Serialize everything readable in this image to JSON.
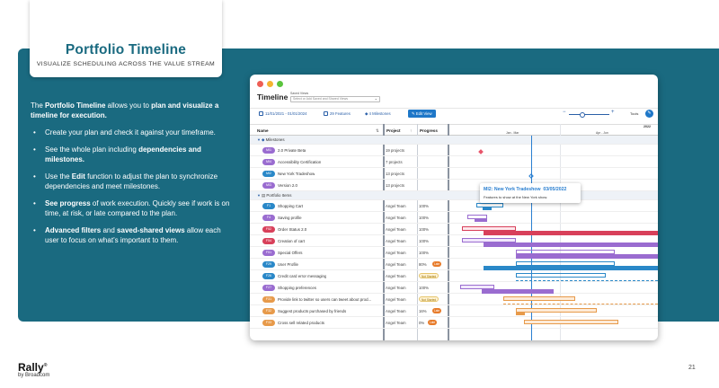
{
  "slide": {
    "title": "Portfolio Timeline",
    "subtitle": "VISUALIZE SCHEDULING ACROSS THE VALUE STREAM",
    "intro": {
      "p1": "The ",
      "b1": "Portfolio Timeline",
      "p2": " allows you to ",
      "b2": "plan and visualize a timeline for execution."
    },
    "bullets": [
      {
        "a": "Create your plan and check it against your timeframe."
      },
      {
        "a": "See the whole plan including ",
        "b": "dependencies and milestones."
      },
      {
        "a": "Use the ",
        "b": "Edit",
        "c": " function to adjust the plan to synchronize dependencies and meet milestones."
      },
      {
        "b": "See progress",
        "c": " of work execution. Quickly see if work is on time, at risk, or late compared to the plan."
      },
      {
        "b": "Advanced filters",
        "c": " and ",
        "d": "saved-shared views",
        "e": " allow each user to focus on what’s important to them."
      }
    ],
    "logo": {
      "name": "Rally",
      "mark": "®",
      "by": "by Broadcom"
    },
    "page_number": "21"
  },
  "app": {
    "title": "Timeline",
    "saved_views_label": "Saved Views",
    "saved_views_placeholder": "Select or Add Saved and Shared Views",
    "toolbar": {
      "date_range": "11/01/2021 - 01/01/2024",
      "features": "29 Features",
      "milestones": "4 Milestones",
      "edit": "Edit View",
      "tools": "Tools"
    },
    "columns": {
      "name": "Name",
      "project": "Project",
      "progress": "Progress"
    },
    "timeline_header": {
      "year": "2022",
      "months": [
        "Jan - Mar",
        "Apr - Jun"
      ]
    },
    "sections": {
      "milestones": "Milestones",
      "portfolio": "Portfolio Items"
    },
    "milestones": [
      {
        "id": "MI1",
        "name": "2.0 Private Beta",
        "project": "19 projects"
      },
      {
        "id": "MI4",
        "name": "Accessibility Certification",
        "project": "7 projects"
      },
      {
        "id": "MI2",
        "name": "New York Tradeshow",
        "project": "13 projects"
      },
      {
        "id": "MI3",
        "name": "Version 2.0",
        "project": "13 projects"
      }
    ],
    "items": [
      {
        "id": "F1",
        "name": "Shopping Cart",
        "project": "Angel Team",
        "progress": "100%",
        "color": "#2a88c8"
      },
      {
        "id": "F4",
        "name": "Saving profile",
        "project": "Angel Team",
        "progress": "100%",
        "color": "#9a6cd0"
      },
      {
        "id": "F52",
        "name": "Order Status 2.0",
        "project": "Angel Team",
        "progress": "100%",
        "color": "#d8405a"
      },
      {
        "id": "F54",
        "name": "Creation of cart",
        "project": "Angel Team",
        "progress": "100%",
        "color": "#d8405a"
      },
      {
        "id": "F51",
        "name": "Special Offers",
        "project": "Angel Team",
        "progress": "100%",
        "color": "#9a6cd0"
      },
      {
        "id": "F29",
        "name": "User Profile",
        "project": "Angel Team",
        "progress": "80%",
        "status": "Late",
        "color": "#2a88c8"
      },
      {
        "id": "F26",
        "name": "Credit card error messaging",
        "project": "Angel Team",
        "status": "Not Started",
        "color": "#2a88c8"
      },
      {
        "id": "F27",
        "name": "Shopping preferences",
        "project": "Angel Team",
        "progress": "100%",
        "color": "#9a6cd0"
      },
      {
        "id": "F31",
        "name": "Provide link to twitter so users can tweet about prod...",
        "project": "Angel Team",
        "status": "Not Started",
        "color": "#e79a4a"
      },
      {
        "id": "F32",
        "name": "Suggest products purchased by friends",
        "project": "Angel Team",
        "progress": "16%",
        "status": "Late",
        "color": "#e79a4a"
      },
      {
        "id": "F33",
        "name": "Cross sell related products",
        "project": "Angel Team",
        "progress": "0%",
        "status": "Late",
        "color": "#e79a4a"
      }
    ],
    "tooltip": {
      "title": "MI2: New York Tradeshow",
      "date": "03/05/2022",
      "desc": "Features to show at the New York show."
    },
    "colors": {
      "milestone_badge": "#9a6cd0",
      "mi2_badge": "#2a88c8",
      "accent": "#1e77c8",
      "band": "#1a6a80"
    }
  }
}
